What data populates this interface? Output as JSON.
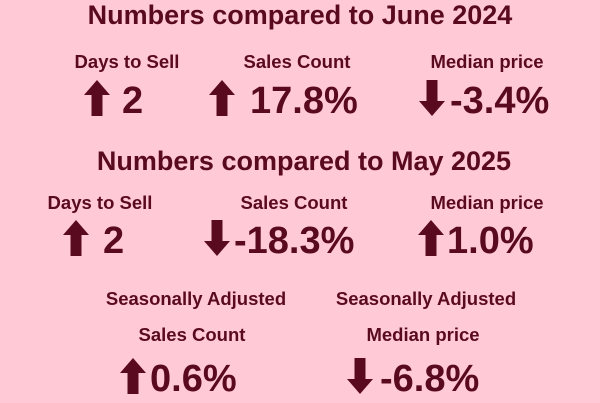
{
  "sections": [
    {
      "title": "Numbers compared to June 2024",
      "metrics": [
        {
          "label": "Days to Sell",
          "value": "2"
        },
        {
          "label": "Sales Count",
          "value": "17.8%"
        },
        {
          "label": "Median price",
          "value": "-3.4%"
        }
      ]
    },
    {
      "title": "Numbers compared to May 2025",
      "metrics": [
        {
          "label": "Days to Sell",
          "value": "2"
        },
        {
          "label": "Sales Count",
          "value": "-18.3%"
        },
        {
          "label": "Median price",
          "value": "1.0%"
        }
      ]
    }
  ],
  "adjusted": [
    {
      "qualifier": "Seasonally Adjusted",
      "label": "Sales Count",
      "value": "0.6%"
    },
    {
      "qualifier": "Seasonally Adjusted",
      "label": "Median price",
      "value": "-6.8%"
    }
  ]
}
